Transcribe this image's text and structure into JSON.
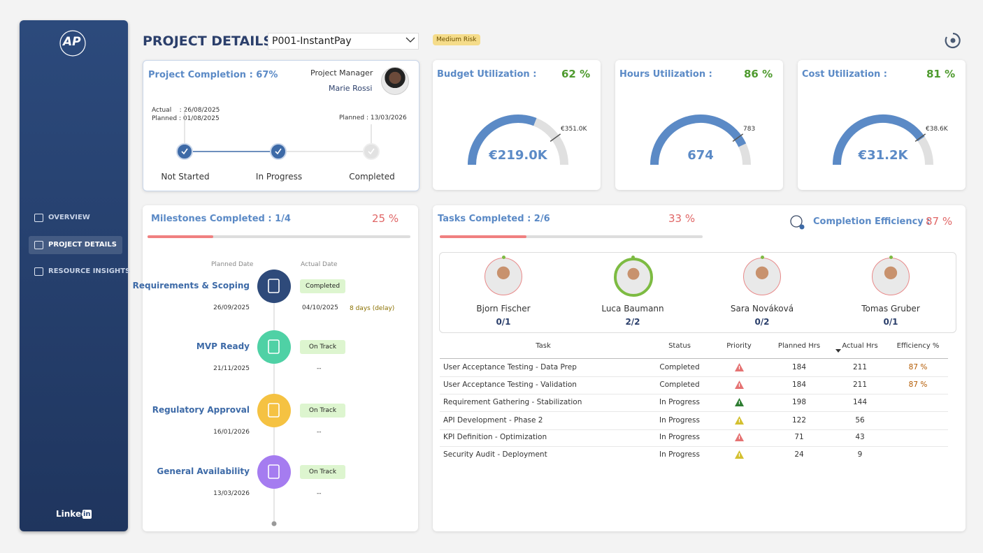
{
  "sidebar": {
    "logo": "AP",
    "nav": [
      "OVERVIEW",
      "PROJECT DETAILS",
      "RESOURCE INSIGHTS"
    ],
    "active": 1,
    "footer": "Linked",
    "footer_badge": "in"
  },
  "header": {
    "title": "PROJECT DETAILS",
    "project": "P001-InstantPay",
    "risk": "Medium Risk"
  },
  "completion": {
    "title": "Project Completion : 67%",
    "manager_label": "Project Manager",
    "manager": "Marie Rossi",
    "actual": "Actual    : 26/08/2025",
    "planned": "Planned : 01/08/2025",
    "planned_end": "Planned : 13/03/2026",
    "stages": [
      "Not Started",
      "In Progress",
      "Completed"
    ],
    "done": [
      true,
      true,
      false
    ]
  },
  "gauges": [
    {
      "title": "Budget Utilization :",
      "percent": 62,
      "percent_label": "62 %",
      "value": "€219.0K",
      "max": "€351.0K"
    },
    {
      "title": "Hours Utilization :",
      "percent": 86,
      "percent_label": "86 %",
      "value": "674",
      "max": "783"
    },
    {
      "title": "Cost Utilization :",
      "percent": 81,
      "percent_label": "81 %",
      "value": "€31.2K",
      "max": "€38.6K"
    }
  ],
  "milestones": {
    "title": "Milestones Completed : 1/4",
    "progress": 25,
    "progress_label": "25 %",
    "planned_header": "Planned Date",
    "actual_header": "Actual Date",
    "items": [
      {
        "name": "Requirements & Scoping",
        "planned": "26/09/2025",
        "actual": "04/10/2025",
        "status": "Completed",
        "note": "8 days (delay)",
        "color": "#2e4a7a"
      },
      {
        "name": "MVP Ready",
        "planned": "21/11/2025",
        "actual": "--",
        "status": "On Track",
        "color": "#4fd1a5"
      },
      {
        "name": "Regulatory Approval",
        "planned": "16/01/2026",
        "actual": "--",
        "status": "On Track",
        "color": "#f5c242"
      },
      {
        "name": "General Availability",
        "planned": "13/03/2026",
        "actual": "--",
        "status": "On Track",
        "color": "#a57cf0"
      }
    ]
  },
  "tasks": {
    "title": "Tasks Completed : 2/6",
    "progress": 33,
    "progress_label": "33 %",
    "efficiency_title": "Completion Efficiency :",
    "efficiency": "87 %",
    "people": [
      {
        "name": "Bjorn Fischer",
        "score": "0/1",
        "complete": false
      },
      {
        "name": "Luca Baumann",
        "score": "2/2",
        "complete": true
      },
      {
        "name": "Sara Nováková",
        "score": "0/2",
        "complete": false
      },
      {
        "name": "Tomas Gruber",
        "score": "0/1",
        "complete": false
      }
    ],
    "columns": [
      "Task",
      "Status",
      "Priority",
      "Planned Hrs",
      "Actual Hrs",
      "Efficiency %"
    ],
    "rows": [
      {
        "task": "User Acceptance Testing - Data Prep",
        "status": "Completed",
        "priority": "#e57373",
        "planned": 184,
        "actual": 211,
        "efficiency": "87 %"
      },
      {
        "task": "User Acceptance Testing - Validation",
        "status": "Completed",
        "priority": "#e57373",
        "planned": 184,
        "actual": 211,
        "efficiency": "87 %"
      },
      {
        "task": "Requirement Gathering - Stabilization",
        "status": "In Progress",
        "priority": "#2e7d32",
        "planned": 198,
        "actual": 144
      },
      {
        "task": "API Development - Phase 2",
        "status": "In Progress",
        "priority": "#d4c030",
        "planned": 122,
        "actual": 56
      },
      {
        "task": "KPI Definition - Optimization",
        "status": "In Progress",
        "priority": "#e57373",
        "planned": 71,
        "actual": 43
      },
      {
        "task": "Security Audit - Deployment",
        "status": "In Progress",
        "priority": "#d4c030",
        "planned": 24,
        "actual": 9
      }
    ]
  }
}
